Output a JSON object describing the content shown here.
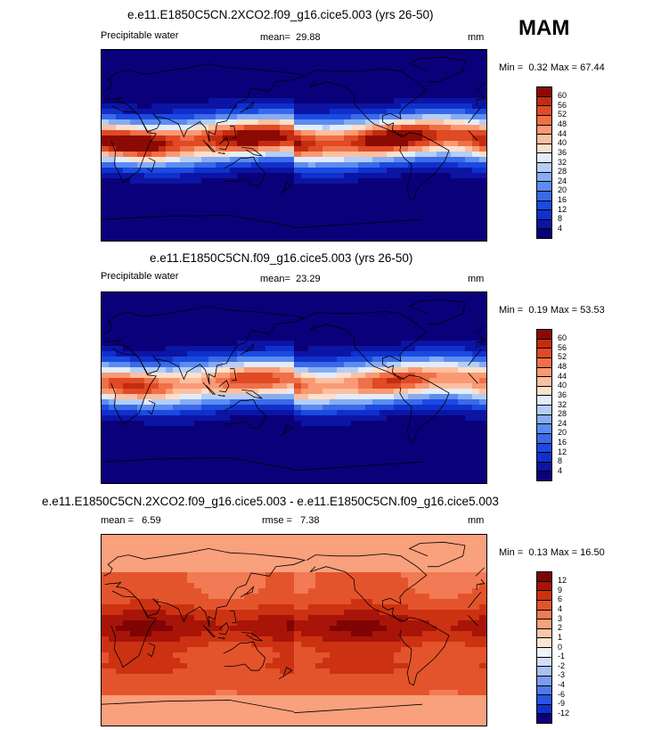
{
  "season": "MAM",
  "panels": [
    {
      "title": "e.e11.E1850C5CN.2XCO2.f09_g16.cice5.003 (yrs 26-50)",
      "left_label": "Precipitable water",
      "stat_label": "mean=",
      "stat_value": "29.88",
      "units": "mm",
      "min_label": "Min =",
      "min_value": "0.32",
      "max_label": "Max =",
      "max_value": "67.44",
      "colorbar_labels": [
        "60",
        "56",
        "52",
        "48",
        "44",
        "40",
        "36",
        "32",
        "28",
        "24",
        "20",
        "16",
        "12",
        "8",
        "4"
      ],
      "colors": [
        "#0a007a",
        "#0c14a4",
        "#1030cc",
        "#1a4ae0",
        "#3a6ae8",
        "#5c8cf0",
        "#86acf4",
        "#b4cef8",
        "#e2ecfa",
        "#fde0cc",
        "#fcc0a0",
        "#f99a74",
        "#f07048",
        "#e04a24",
        "#c42c10",
        "#8c0a04"
      ],
      "pattern": "abs"
    },
    {
      "title": "e.e11.E1850C5CN.f09_g16.cice5.003 (yrs 26-50)",
      "left_label": "Precipitable water",
      "stat_label": "mean=",
      "stat_value": "23.29",
      "units": "mm",
      "min_label": "Min =",
      "min_value": "0.19",
      "max_label": "Max =",
      "max_value": "53.53",
      "colorbar_labels": [
        "60",
        "56",
        "52",
        "48",
        "44",
        "40",
        "36",
        "32",
        "28",
        "24",
        "20",
        "16",
        "12",
        "8",
        "4"
      ],
      "colors": [
        "#0a007a",
        "#0c14a4",
        "#1030cc",
        "#1a4ae0",
        "#3a6ae8",
        "#5c8cf0",
        "#86acf4",
        "#b4cef8",
        "#e2ecfa",
        "#fde0cc",
        "#fcc0a0",
        "#f99a74",
        "#f07048",
        "#e04a24",
        "#c42c10",
        "#8c0a04"
      ],
      "pattern": "abs2"
    },
    {
      "title": "e.e11.E1850C5CN.2XCO2.f09_g16.cice5.003 - e.e11.E1850C5CN.f09_g16.cice5.003",
      "left_label": "mean =",
      "left_value": "6.59",
      "stat_label": "rmse =",
      "stat_value": "7.38",
      "units": "mm",
      "min_label": "Min =",
      "min_value": "0.13",
      "max_label": "Max =",
      "max_value": "16.50",
      "colorbar_labels": [
        "12",
        "9",
        "6",
        "4",
        "3",
        "2",
        "1",
        "0",
        "-1",
        "-2",
        "-3",
        "-4",
        "-6",
        "-9",
        "-12"
      ],
      "colors": [
        "#0a007a",
        "#1030cc",
        "#2a54e4",
        "#5078ec",
        "#7c9cf2",
        "#a8c0f6",
        "#d0defa",
        "#eef2fc",
        "#fde4d4",
        "#fcc6a6",
        "#f9a07c",
        "#f27a54",
        "#e4542c",
        "#cc3212",
        "#a81408",
        "#800404"
      ],
      "pattern": "diff"
    }
  ]
}
